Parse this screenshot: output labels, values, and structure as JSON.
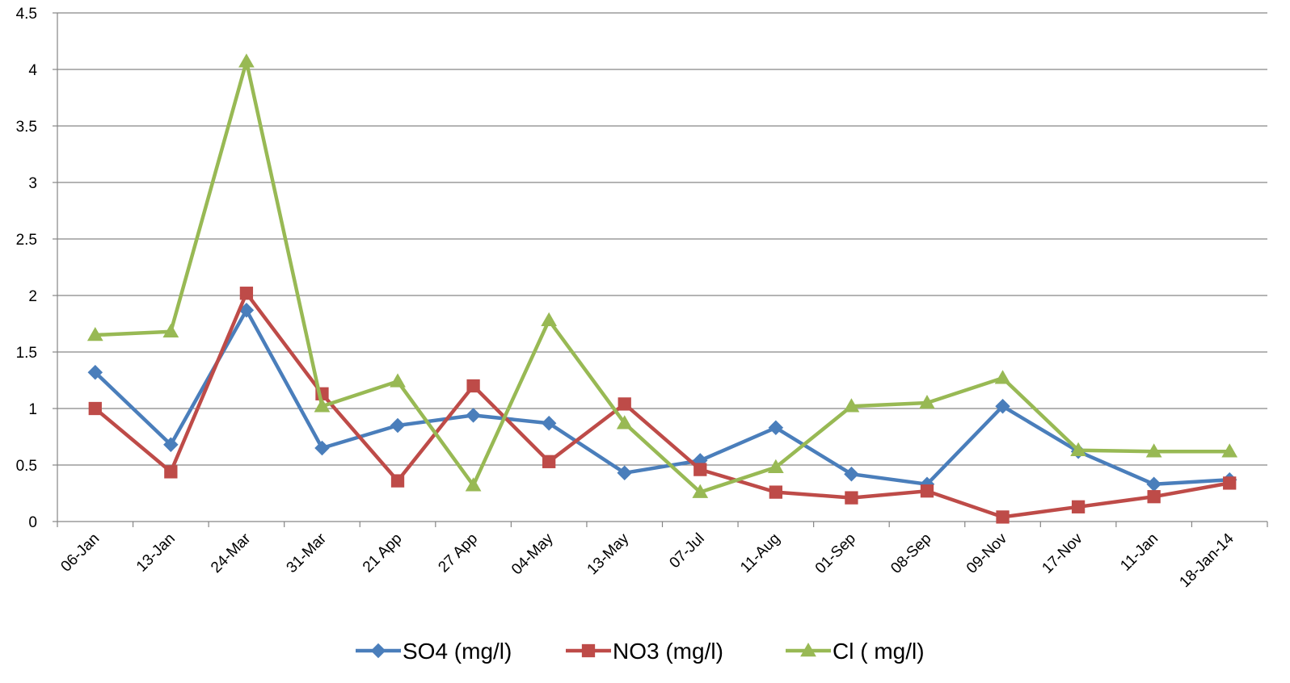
{
  "chart_data": {
    "type": "line",
    "title": "",
    "xlabel": "",
    "ylabel": "",
    "categories": [
      "06-Jan",
      "13-Jan",
      "24-Mar",
      "31-Mar",
      "21 App",
      "27 App",
      "04-May",
      "13-May",
      "07-Jul",
      "11-Aug",
      "01-Sep",
      "08-Sep",
      "09-Nov",
      "17-Nov",
      "11-Jan",
      "18-Jan-14"
    ],
    "ylim": [
      0,
      4.5
    ],
    "yticks": [
      "0",
      "0.5",
      "1",
      "1.5",
      "2",
      "2.5",
      "3",
      "3.5",
      "4",
      "4.5"
    ],
    "grid": true,
    "legend_position": "bottom",
    "series": [
      {
        "name": "SO4 (mg/l)",
        "color": "#4a7ebb",
        "marker": "diamond",
        "values": [
          1.32,
          0.68,
          1.87,
          0.65,
          0.85,
          0.94,
          0.87,
          0.43,
          0.54,
          0.83,
          0.42,
          0.33,
          1.02,
          0.62,
          0.33,
          0.37
        ]
      },
      {
        "name": "NO3 (mg/l)",
        "color": "#be4b48",
        "marker": "square",
        "values": [
          1.0,
          0.44,
          2.02,
          1.13,
          0.36,
          1.2,
          0.53,
          1.04,
          0.46,
          0.26,
          0.21,
          0.27,
          0.04,
          0.13,
          0.22,
          0.34
        ]
      },
      {
        "name": "Cl ( mg/l)",
        "color": "#98b954",
        "marker": "triangle",
        "values": [
          1.65,
          1.68,
          4.07,
          1.02,
          1.24,
          0.32,
          1.78,
          0.87,
          0.26,
          0.48,
          1.02,
          1.05,
          1.27,
          0.63,
          0.62,
          0.62
        ]
      }
    ]
  }
}
